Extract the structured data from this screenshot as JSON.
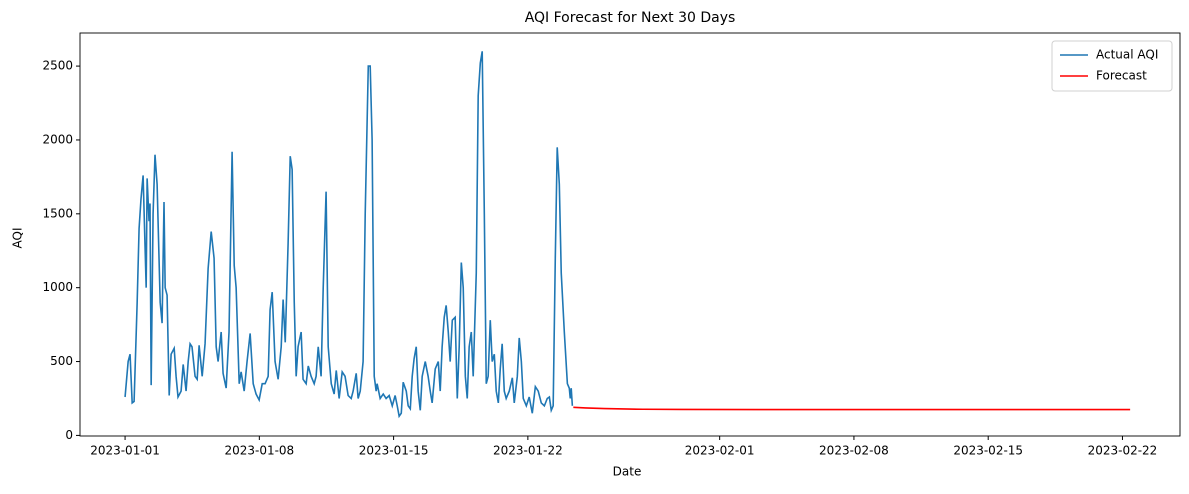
{
  "chart_data": {
    "type": "line",
    "title": "AQI Forecast for Next 30 Days",
    "x_label": "Date",
    "y_label": "AQI",
    "xlim": [
      -2.35,
      55.0
    ],
    "ylim": [
      -4,
      2724
    ],
    "xticks": [
      {
        "value": 0,
        "label": "2023-01-01"
      },
      {
        "value": 7,
        "label": "2023-01-08"
      },
      {
        "value": 14,
        "label": "2023-01-15"
      },
      {
        "value": 21,
        "label": "2023-01-22"
      },
      {
        "value": 31,
        "label": "2023-02-01"
      },
      {
        "value": 38,
        "label": "2023-02-08"
      },
      {
        "value": 45,
        "label": "2023-02-15"
      },
      {
        "value": 52,
        "label": "2023-02-22"
      }
    ],
    "yticks": [
      0,
      500,
      1000,
      1500,
      2000,
      2500
    ],
    "legend": "upper right",
    "series": [
      {
        "name": "Actual AQI",
        "color": "#1f77b4",
        "x": [
          0,
          0.16,
          0.26,
          0.37,
          0.47,
          0.63,
          0.73,
          0.83,
          0.94,
          1.1,
          1.15,
          1.25,
          1.3,
          1.36,
          1.46,
          1.56,
          1.67,
          1.83,
          1.93,
          2.03,
          2.09,
          2.19,
          2.3,
          2.4,
          2.56,
          2.66,
          2.76,
          2.92,
          3.03,
          3.18,
          3.29,
          3.39,
          3.49,
          3.65,
          3.76,
          3.86,
          4.02,
          4.17,
          4.33,
          4.49,
          4.64,
          4.75,
          4.85,
          5.01,
          5.11,
          5.27,
          5.42,
          5.58,
          5.69,
          5.79,
          5.95,
          6.05,
          6.21,
          6.36,
          6.52,
          6.68,
          6.83,
          6.99,
          7.15,
          7.3,
          7.46,
          7.56,
          7.67,
          7.82,
          7.98,
          8.14,
          8.24,
          8.35,
          8.5,
          8.61,
          8.71,
          8.82,
          8.92,
          9.02,
          9.18,
          9.28,
          9.44,
          9.55,
          9.7,
          9.86,
          9.96,
          10.07,
          10.22,
          10.33,
          10.48,
          10.59,
          10.75,
          10.9,
          11.01,
          11.16,
          11.32,
          11.47,
          11.63,
          11.79,
          11.89,
          12.05,
          12.15,
          12.26,
          12.41,
          12.52,
          12.68,
          12.78,
          12.88,
          12.99,
          13.09,
          13.14,
          13.3,
          13.46,
          13.61,
          13.77,
          13.93,
          14.08,
          14.19,
          14.29,
          14.4,
          14.5,
          14.66,
          14.76,
          14.87,
          14.97,
          15.07,
          15.18,
          15.28,
          15.39,
          15.49,
          15.65,
          15.8,
          15.91,
          16.01,
          16.17,
          16.33,
          16.43,
          16.53,
          16.64,
          16.74,
          16.85,
          16.95,
          17.06,
          17.21,
          17.32,
          17.42,
          17.53,
          17.63,
          17.74,
          17.84,
          17.94,
          18.05,
          18.15,
          18.31,
          18.41,
          18.52,
          18.62,
          18.73,
          18.83,
          18.93,
          19.04,
          19.14,
          19.25,
          19.35,
          19.46,
          19.56,
          19.66,
          19.77,
          19.87,
          20.03,
          20.19,
          20.29,
          20.45,
          20.55,
          20.66,
          20.76,
          20.92,
          21.07,
          21.23,
          21.39,
          21.54,
          21.7,
          21.86,
          22.01,
          22.12,
          22.22,
          22.32,
          22.43,
          22.53,
          22.64,
          22.74,
          22.9,
          23.06,
          23.16,
          23.21,
          23.26,
          23.32
        ],
        "values": [
          260,
          500,
          550,
          220,
          230,
          900,
          1400,
          1600,
          1760,
          1000,
          1740,
          1450,
          1570,
          340,
          1500,
          1900,
          1700,
          900,
          760,
          1580,
          1000,
          950,
          270,
          550,
          590,
          400,
          260,
          300,
          480,
          300,
          500,
          620,
          600,
          400,
          380,
          610,
          400,
          620,
          1130,
          1380,
          1200,
          600,
          500,
          700,
          420,
          320,
          700,
          1920,
          1150,
          1000,
          350,
          430,
          300,
          500,
          690,
          350,
          280,
          240,
          350,
          350,
          400,
          850,
          970,
          500,
          380,
          600,
          920,
          630,
          1300,
          1890,
          1800,
          900,
          400,
          600,
          700,
          380,
          350,
          470,
          400,
          350,
          400,
          600,
          400,
          1000,
          1650,
          600,
          350,
          280,
          440,
          250,
          430,
          400,
          270,
          250,
          300,
          420,
          250,
          300,
          500,
          1500,
          2500,
          2500,
          2000,
          400,
          300,
          350,
          250,
          280,
          250,
          270,
          200,
          270,
          200,
          130,
          150,
          360,
          300,
          200,
          180,
          400,
          520,
          600,
          300,
          170,
          400,
          500,
          400,
          300,
          220,
          450,
          500,
          300,
          600,
          800,
          880,
          700,
          500,
          780,
          800,
          250,
          600,
          1170,
          1000,
          400,
          250,
          600,
          700,
          400,
          1100,
          2300,
          2520,
          2600,
          1500,
          350,
          400,
          780,
          500,
          550,
          300,
          220,
          450,
          620,
          300,
          250,
          300,
          390,
          220,
          400,
          660,
          500,
          250,
          200,
          260,
          150,
          330,
          300,
          220,
          200,
          250,
          260,
          170,
          200,
          1200,
          1950,
          1700,
          1100,
          700,
          350,
          320,
          250,
          320,
          200
        ]
      },
      {
        "name": "Forecast",
        "color": "#ff0000",
        "x": [
          23.37,
          24,
          25,
          26,
          27,
          29,
          33,
          52.4
        ],
        "values": [
          190,
          186,
          182,
          179,
          177,
          176,
          175,
          175
        ]
      }
    ]
  }
}
